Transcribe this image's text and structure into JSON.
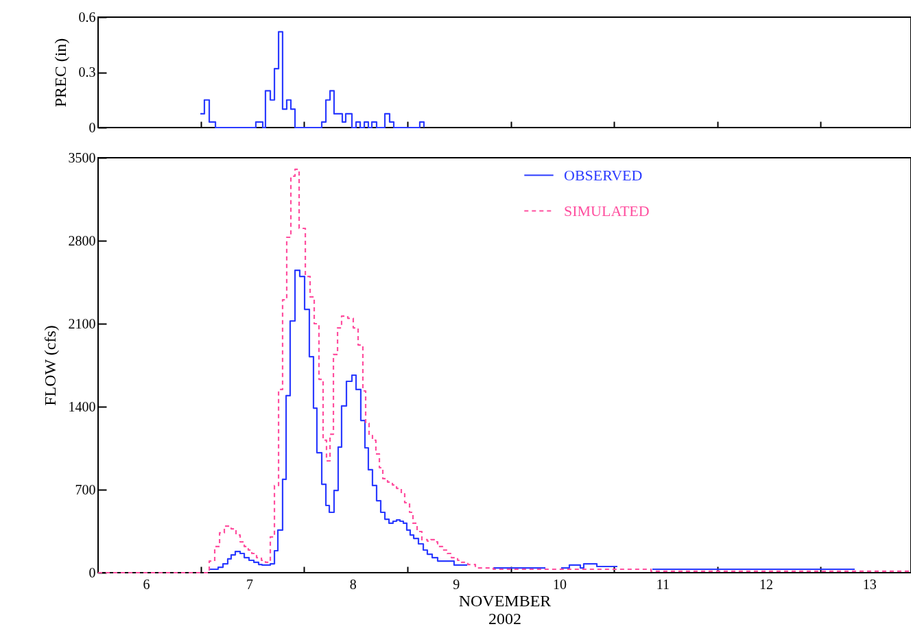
{
  "chart_data": [
    {
      "type": "step",
      "ylabel": "PREC (in)",
      "color": "#2b3bff",
      "x": [
        6.525,
        6.564,
        6.611,
        6.671,
        7.062,
        7.129,
        7.155,
        7.202,
        7.242,
        7.282,
        7.321,
        7.361,
        7.401,
        7.441,
        7.7,
        7.74,
        7.78,
        7.819,
        7.899,
        7.932,
        7.992,
        8.032,
        8.072,
        8.112,
        8.151,
        8.185,
        8.231,
        8.311,
        8.357,
        8.397,
        8.649,
        8.689
      ],
      "values": [
        0.075,
        0.15,
        0.03,
        0,
        0.03,
        0,
        0.2,
        0.15,
        0.32,
        0.52,
        0.1,
        0.15,
        0.1,
        0,
        0.03,
        0.15,
        0.2,
        0.075,
        0.03,
        0.075,
        0,
        0.03,
        0,
        0.03,
        0,
        0.03,
        0,
        0.075,
        0.03,
        0,
        0.03,
        0
      ],
      "xlim": [
        5.535,
        13.404
      ],
      "xticks": [
        {
          "value": 6.53,
          "label": null
        },
        {
          "value": 7.53,
          "label": null
        },
        {
          "value": 8.53,
          "label": null
        },
        {
          "value": 9.53,
          "label": null
        },
        {
          "value": 10.53,
          "label": null
        },
        {
          "value": 11.53,
          "label": null
        },
        {
          "value": 12.53,
          "label": null
        }
      ],
      "ylim": [
        0,
        0.6
      ],
      "yticks": [
        0,
        0.3,
        0.6
      ],
      "tick_labels": "y"
    },
    {
      "type": "step",
      "ylabel": "FLOW (cfs)",
      "xlabel": "NOVEMBER 2002",
      "legend": "top right",
      "xlim": [
        5.535,
        13.404
      ],
      "xticks": [
        6,
        7,
        8,
        9,
        10,
        11,
        12,
        13,
        {
          "value": 6.53,
          "label": null
        },
        {
          "value": 7.53,
          "label": null
        },
        {
          "value": 8.53,
          "label": null
        },
        {
          "value": 9.53,
          "label": null
        },
        {
          "value": 10.53,
          "label": null
        },
        {
          "value": 11.53,
          "label": null
        },
        {
          "value": 12.53,
          "label": null
        }
      ],
      "ylim": [
        0,
        3500
      ],
      "yticks": [
        0,
        700,
        1400,
        2100,
        2800,
        3500
      ],
      "series": [
        {
          "name": "OBSERVED",
          "color": "#2b3bff",
          "line_style": "solid",
          "x": [
            6.611,
            6.697,
            6.744,
            6.79,
            6.823,
            6.863,
            6.91,
            6.95,
            6.996,
            7.043,
            7.089,
            7.122,
            7.202,
            7.242,
            7.275,
            7.321,
            7.355,
            7.394,
            7.441,
            7.487,
            7.534,
            7.58,
            7.62,
            7.653,
            7.7,
            7.74,
            7.773,
            7.819,
            7.859,
            7.892,
            7.939,
            7.992,
            8.032,
            8.078,
            8.118,
            8.151,
            8.191,
            8.231,
            8.271,
            8.311,
            8.351,
            8.39,
            8.424,
            8.457,
            8.49,
            8.523,
            8.556,
            8.59,
            8.636,
            8.683,
            8.722,
            8.769,
            8.822,
            8.981,
            9.108,
            9.12,
            9.36,
            9.865,
            9.87,
            10.017,
            10.097,
            10.203,
            10.236,
            10.363,
            10.562,
            10.57,
            10.9,
            12.859
          ],
          "values": [
            29,
            46,
            75,
            116,
            150,
            179,
            162,
            127,
            104,
            87,
            69,
            64,
            75,
            185,
            359,
            787,
            1493,
            2123,
            2551,
            2499,
            2221,
            1822,
            1388,
            1012,
            746,
            567,
            509,
            694,
            1059,
            1406,
            1614,
            1666,
            1545,
            1284,
            1053,
            868,
            735,
            607,
            509,
            451,
            417,
            434,
            445,
            434,
            417,
            359,
            318,
            289,
            243,
            191,
            156,
            127,
            98,
            64,
            64,
            null,
            40,
            40,
            null,
            40,
            64,
            40,
            75,
            52,
            52,
            null,
            29,
            29
          ]
        },
        {
          "name": "SIMULATED",
          "color": "#ff4f9f",
          "line_style": "dashed",
          "x": [
            5.535,
            6.611,
            6.664,
            6.711,
            6.757,
            6.823,
            6.87,
            6.91,
            6.95,
            6.989,
            7.023,
            7.069,
            7.116,
            7.155,
            7.202,
            7.242,
            7.282,
            7.321,
            7.361,
            7.401,
            7.441,
            7.481,
            7.541,
            7.587,
            7.627,
            7.673,
            7.713,
            7.746,
            7.78,
            7.813,
            7.853,
            7.892,
            7.952,
            8.005,
            8.052,
            8.098,
            8.125,
            8.158,
            8.191,
            8.224,
            8.258,
            8.291,
            8.337,
            8.384,
            8.424,
            8.47,
            8.503,
            8.55,
            8.583,
            8.623,
            8.669,
            8.722,
            8.756,
            8.789,
            8.822,
            8.869,
            8.915,
            8.955,
            9.015,
            9.054,
            9.114,
            9.187,
            9.36,
            10.887,
            13.404
          ],
          "values": [
            0,
            98,
            220,
            336,
            393,
            370,
            318,
            260,
            220,
            191,
            162,
            127,
            104,
            87,
            301,
            735,
            1545,
            2302,
            2829,
            3344,
            3402,
            2904,
            2499,
            2326,
            2100,
            1631,
            1117,
            943,
            1168,
            1840,
            2065,
            2164,
            2146,
            2065,
            1920,
            1533,
            1261,
            1157,
            1117,
            1001,
            885,
            793,
            764,
            740,
            711,
            665,
            590,
            509,
            417,
            347,
            278,
            266,
            278,
            260,
            220,
            191,
            162,
            127,
            104,
            87,
            69,
            40,
            29,
            12,
            12
          ]
        }
      ]
    }
  ]
}
